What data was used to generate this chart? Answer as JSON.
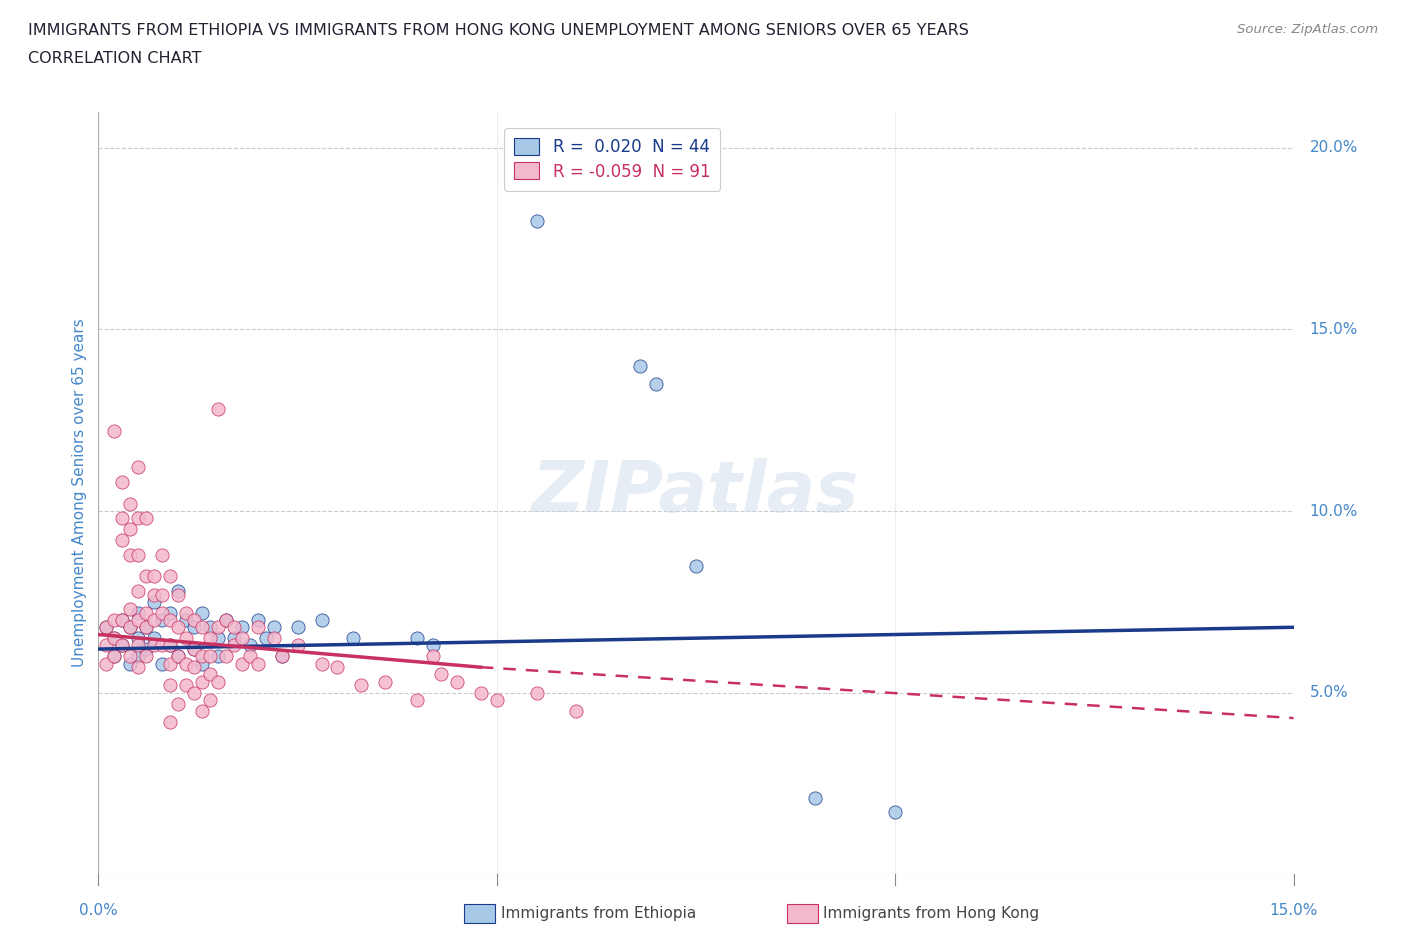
{
  "title_line1": "IMMIGRANTS FROM ETHIOPIA VS IMMIGRANTS FROM HONG KONG UNEMPLOYMENT AMONG SENIORS OVER 65 YEARS",
  "title_line2": "CORRELATION CHART",
  "source_text": "Source: ZipAtlas.com",
  "ylabel": "Unemployment Among Seniors over 65 years",
  "watermark": "ZIPatlas",
  "xlim": [
    0.0,
    0.15
  ],
  "ylim": [
    0.0,
    0.21
  ],
  "scatter_color_ethiopia": "#a8c8e8",
  "scatter_color_hongkong": "#f4b8cc",
  "line_color_ethiopia": "#1a3a8a",
  "line_color_hongkong": "#c83060",
  "axis_label_color": "#4488cc",
  "title_color": "#222233",
  "ethiopia_line": [
    0.0,
    0.062,
    0.15,
    0.068
  ],
  "hongkong_line_solid": [
    0.0,
    0.066,
    0.048,
    0.057
  ],
  "hongkong_line_dash": [
    0.048,
    0.057,
    0.15,
    0.043
  ],
  "ethiopia_scatter": [
    [
      0.001,
      0.068
    ],
    [
      0.002,
      0.065
    ],
    [
      0.002,
      0.06
    ],
    [
      0.003,
      0.07
    ],
    [
      0.003,
      0.063
    ],
    [
      0.004,
      0.068
    ],
    [
      0.004,
      0.058
    ],
    [
      0.005,
      0.072
    ],
    [
      0.005,
      0.065
    ],
    [
      0.005,
      0.06
    ],
    [
      0.006,
      0.068
    ],
    [
      0.006,
      0.062
    ],
    [
      0.007,
      0.075
    ],
    [
      0.007,
      0.065
    ],
    [
      0.008,
      0.07
    ],
    [
      0.008,
      0.058
    ],
    [
      0.009,
      0.072
    ],
    [
      0.009,
      0.063
    ],
    [
      0.01,
      0.078
    ],
    [
      0.01,
      0.06
    ],
    [
      0.011,
      0.07
    ],
    [
      0.012,
      0.068
    ],
    [
      0.012,
      0.062
    ],
    [
      0.013,
      0.072
    ],
    [
      0.013,
      0.058
    ],
    [
      0.014,
      0.068
    ],
    [
      0.015,
      0.065
    ],
    [
      0.015,
      0.06
    ],
    [
      0.016,
      0.07
    ],
    [
      0.017,
      0.065
    ],
    [
      0.018,
      0.068
    ],
    [
      0.019,
      0.063
    ],
    [
      0.02,
      0.07
    ],
    [
      0.021,
      0.065
    ],
    [
      0.022,
      0.068
    ],
    [
      0.023,
      0.06
    ],
    [
      0.025,
      0.068
    ],
    [
      0.028,
      0.07
    ],
    [
      0.032,
      0.065
    ],
    [
      0.04,
      0.065
    ],
    [
      0.042,
      0.063
    ],
    [
      0.055,
      0.18
    ],
    [
      0.068,
      0.14
    ],
    [
      0.07,
      0.135
    ],
    [
      0.075,
      0.085
    ],
    [
      0.09,
      0.021
    ],
    [
      0.1,
      0.017
    ]
  ],
  "hongkong_scatter": [
    [
      0.001,
      0.068
    ],
    [
      0.001,
      0.063
    ],
    [
      0.001,
      0.058
    ],
    [
      0.002,
      0.122
    ],
    [
      0.002,
      0.07
    ],
    [
      0.002,
      0.065
    ],
    [
      0.002,
      0.06
    ],
    [
      0.003,
      0.108
    ],
    [
      0.003,
      0.098
    ],
    [
      0.003,
      0.092
    ],
    [
      0.003,
      0.07
    ],
    [
      0.003,
      0.063
    ],
    [
      0.004,
      0.102
    ],
    [
      0.004,
      0.095
    ],
    [
      0.004,
      0.088
    ],
    [
      0.004,
      0.073
    ],
    [
      0.004,
      0.068
    ],
    [
      0.004,
      0.06
    ],
    [
      0.005,
      0.112
    ],
    [
      0.005,
      0.098
    ],
    [
      0.005,
      0.088
    ],
    [
      0.005,
      0.078
    ],
    [
      0.005,
      0.07
    ],
    [
      0.005,
      0.063
    ],
    [
      0.005,
      0.057
    ],
    [
      0.006,
      0.098
    ],
    [
      0.006,
      0.082
    ],
    [
      0.006,
      0.072
    ],
    [
      0.006,
      0.068
    ],
    [
      0.006,
      0.06
    ],
    [
      0.007,
      0.082
    ],
    [
      0.007,
      0.077
    ],
    [
      0.007,
      0.07
    ],
    [
      0.007,
      0.063
    ],
    [
      0.008,
      0.088
    ],
    [
      0.008,
      0.077
    ],
    [
      0.008,
      0.072
    ],
    [
      0.008,
      0.063
    ],
    [
      0.009,
      0.082
    ],
    [
      0.009,
      0.07
    ],
    [
      0.009,
      0.063
    ],
    [
      0.009,
      0.058
    ],
    [
      0.009,
      0.052
    ],
    [
      0.009,
      0.042
    ],
    [
      0.01,
      0.077
    ],
    [
      0.01,
      0.068
    ],
    [
      0.01,
      0.06
    ],
    [
      0.01,
      0.047
    ],
    [
      0.011,
      0.072
    ],
    [
      0.011,
      0.065
    ],
    [
      0.011,
      0.058
    ],
    [
      0.011,
      0.052
    ],
    [
      0.012,
      0.07
    ],
    [
      0.012,
      0.062
    ],
    [
      0.012,
      0.057
    ],
    [
      0.012,
      0.05
    ],
    [
      0.013,
      0.068
    ],
    [
      0.013,
      0.06
    ],
    [
      0.013,
      0.053
    ],
    [
      0.013,
      0.045
    ],
    [
      0.014,
      0.065
    ],
    [
      0.014,
      0.06
    ],
    [
      0.014,
      0.055
    ],
    [
      0.014,
      0.048
    ],
    [
      0.015,
      0.128
    ],
    [
      0.015,
      0.068
    ],
    [
      0.015,
      0.053
    ],
    [
      0.016,
      0.07
    ],
    [
      0.016,
      0.06
    ],
    [
      0.017,
      0.068
    ],
    [
      0.017,
      0.063
    ],
    [
      0.018,
      0.065
    ],
    [
      0.018,
      0.058
    ],
    [
      0.019,
      0.06
    ],
    [
      0.02,
      0.068
    ],
    [
      0.02,
      0.058
    ],
    [
      0.022,
      0.065
    ],
    [
      0.023,
      0.06
    ],
    [
      0.025,
      0.063
    ],
    [
      0.028,
      0.058
    ],
    [
      0.03,
      0.057
    ],
    [
      0.033,
      0.052
    ],
    [
      0.036,
      0.053
    ],
    [
      0.04,
      0.048
    ],
    [
      0.042,
      0.06
    ],
    [
      0.043,
      0.055
    ],
    [
      0.045,
      0.053
    ],
    [
      0.048,
      0.05
    ],
    [
      0.05,
      0.048
    ],
    [
      0.055,
      0.05
    ],
    [
      0.06,
      0.045
    ]
  ]
}
